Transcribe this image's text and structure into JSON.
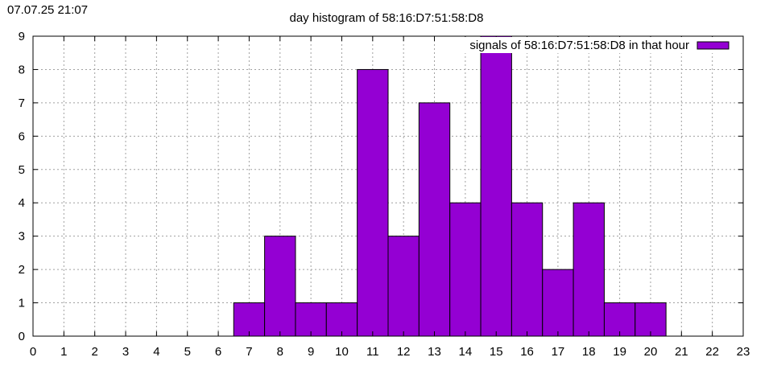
{
  "timestamp": "07.07.25 21:07",
  "chart_data": {
    "type": "bar",
    "title": "day histogram of 58:16:D7:51:58:D8",
    "xlabel": "",
    "ylabel": "",
    "xlim": [
      0,
      23
    ],
    "ylim": [
      0,
      9
    ],
    "xticks": [
      "0",
      "1",
      "2",
      "3",
      "4",
      "5",
      "6",
      "7",
      "8",
      "9",
      "10",
      "11",
      "12",
      "13",
      "14",
      "15",
      "16",
      "17",
      "18",
      "19",
      "20",
      "21",
      "22",
      "23"
    ],
    "yticks": [
      "0",
      "1",
      "2",
      "3",
      "4",
      "5",
      "6",
      "7",
      "8",
      "9"
    ],
    "grid": true,
    "legend_position": "top-right",
    "bar_color": "#9400d3",
    "series": [
      {
        "name": "signals of 58:16:D7:51:58:D8 in that hour",
        "x": [
          7,
          8,
          9,
          10,
          11,
          12,
          13,
          14,
          15,
          16,
          17,
          18,
          19,
          20
        ],
        "values": [
          1,
          3,
          1,
          1,
          8,
          3,
          7,
          4,
          9,
          4,
          2,
          4,
          1,
          1
        ]
      }
    ]
  }
}
